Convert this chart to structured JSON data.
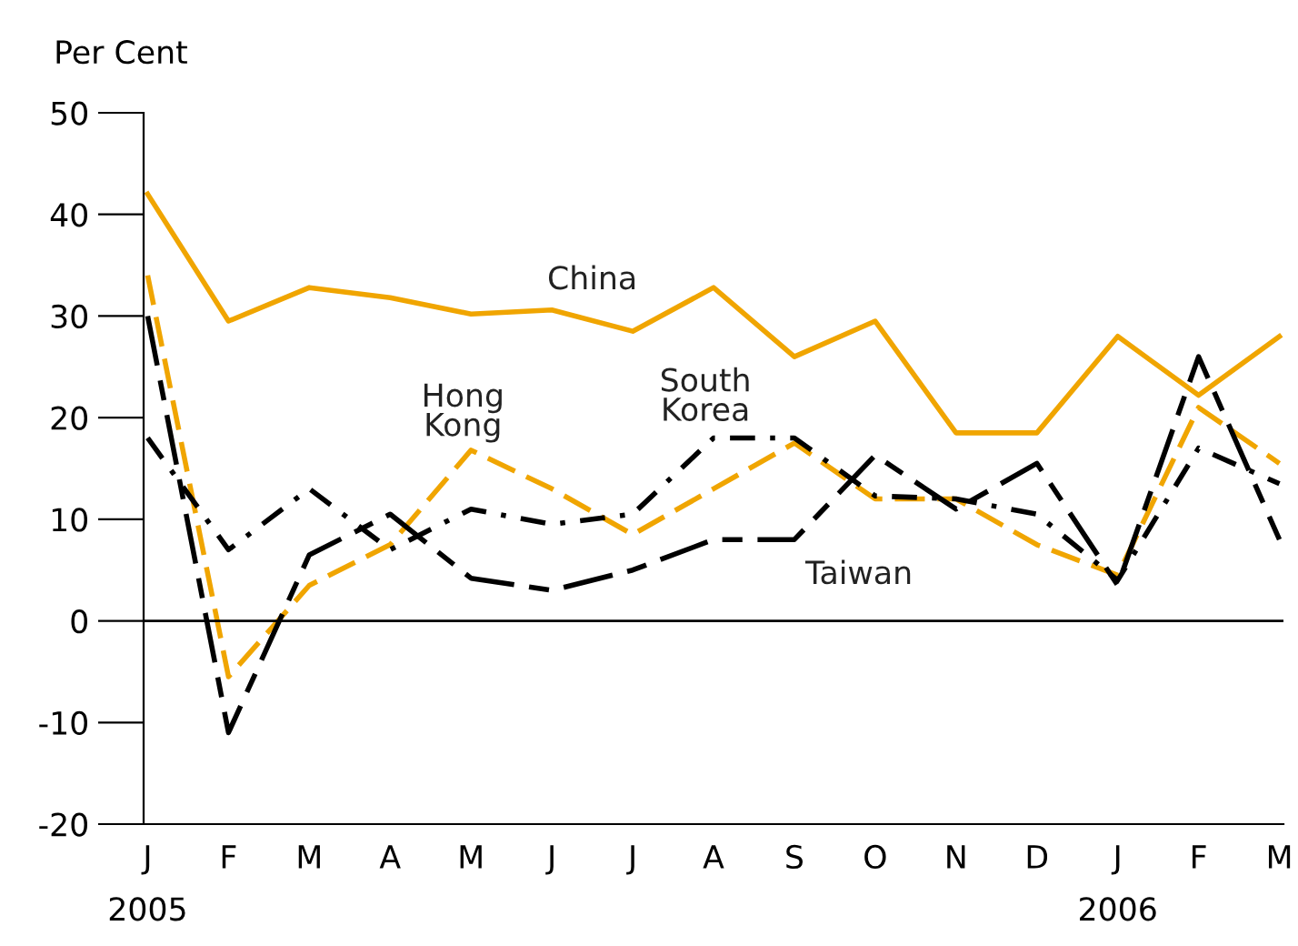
{
  "chart_data": {
    "type": "line",
    "ylabel": "Per Cent",
    "categories": [
      "J\n2005",
      "F",
      "M",
      "A",
      "M",
      "J",
      "J",
      "A",
      "S",
      "O",
      "N",
      "D",
      "J\n2006",
      "F",
      "M"
    ],
    "series": [
      {
        "name": "China",
        "color": "#f0a500",
        "line_style": "solid",
        "values": [
          42,
          29.5,
          32.8,
          31.8,
          30.2,
          30.6,
          28.5,
          32.8,
          26,
          29.5,
          18.5,
          18.5,
          28,
          22.2,
          28
        ]
      },
      {
        "name": "Hong Kong",
        "color": "#f0a500",
        "line_style": "dashed",
        "values": [
          34,
          -5.5,
          3.5,
          7.5,
          16.8,
          13,
          8.5,
          13,
          17.5,
          12,
          12,
          7.5,
          4.5,
          21,
          15.5
        ]
      },
      {
        "name": "South Korea",
        "color": "#000000",
        "line_style": "dashdot",
        "values": [
          18,
          7,
          13,
          7,
          11,
          9.5,
          10.5,
          18,
          18,
          12.3,
          12,
          10.5,
          4,
          17,
          13.5
        ]
      },
      {
        "name": "Taiwan",
        "color": "#000000",
        "line_style": "longdash",
        "values": [
          30,
          -11,
          6.5,
          10.5,
          4.2,
          3,
          5,
          8,
          8,
          16.3,
          11,
          15.5,
          3.5,
          26,
          8
        ]
      }
    ],
    "ylim": [
      -20,
      50
    ],
    "yticks": [
      -20,
      -10,
      0,
      10,
      20,
      30,
      40,
      50
    ],
    "ref_lines": [
      {
        "axis": "y",
        "value": 0,
        "color": "#000000"
      }
    ],
    "grid": false,
    "legend": false,
    "marker": "none"
  }
}
